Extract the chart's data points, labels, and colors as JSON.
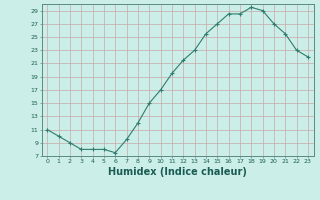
{
  "x": [
    0,
    1,
    2,
    3,
    4,
    5,
    6,
    7,
    8,
    9,
    10,
    11,
    12,
    13,
    14,
    15,
    16,
    17,
    18,
    19,
    20,
    21,
    22,
    23
  ],
  "y": [
    11,
    10,
    9,
    8,
    8,
    8,
    7.5,
    9.5,
    12,
    15,
    17,
    19.5,
    21.5,
    23,
    25.5,
    27,
    28.5,
    28.5,
    29.5,
    29,
    27,
    25.5,
    23,
    22
  ],
  "line_color": "#2e7d6e",
  "marker": "+",
  "marker_size": 3,
  "xlabel": "Humidex (Indice chaleur)",
  "xlabel_fontsize": 7,
  "ylabel_ticks": [
    7,
    9,
    11,
    13,
    15,
    17,
    19,
    21,
    23,
    25,
    27,
    29
  ],
  "xlim": [
    -0.5,
    23.5
  ],
  "ylim": [
    7,
    30
  ],
  "xticks": [
    0,
    1,
    2,
    3,
    4,
    5,
    6,
    7,
    8,
    9,
    10,
    11,
    12,
    13,
    14,
    15,
    16,
    17,
    18,
    19,
    20,
    21,
    22,
    23
  ],
  "background_color": "#cceee8",
  "grid_color": "#c8a8a8"
}
